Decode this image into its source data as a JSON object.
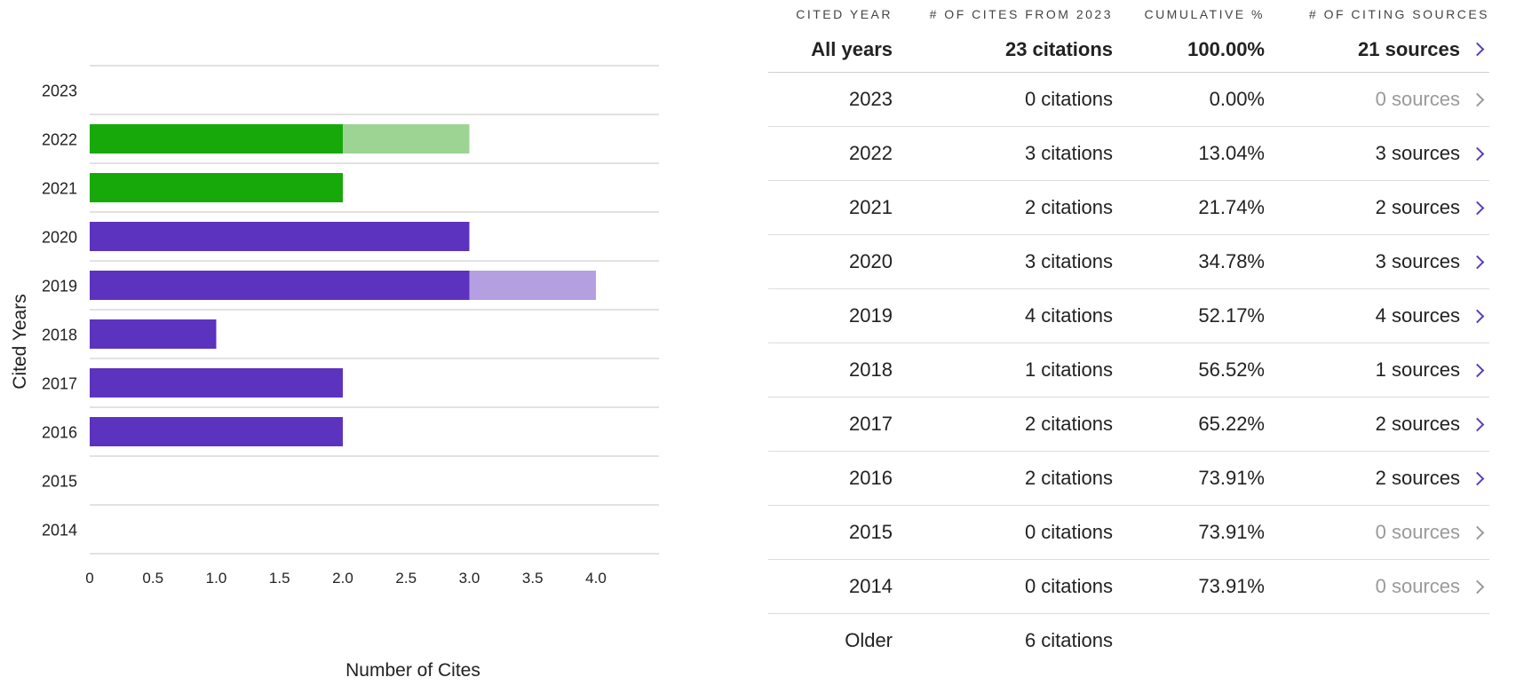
{
  "chart_data": {
    "type": "bar",
    "orientation": "horizontal",
    "stacked": true,
    "ylabel": "Cited Years",
    "xlabel": "Number of Cites",
    "xlim": [
      0,
      4.5
    ],
    "xticks": [
      "0",
      "0.5",
      "1.0",
      "1.5",
      "2.0",
      "2.5",
      "3.0",
      "3.5",
      "4.0"
    ],
    "xtick_values": [
      0,
      0.5,
      1,
      1.5,
      2,
      2.5,
      3,
      3.5,
      4
    ],
    "grid": "horizontal row dividers",
    "categories": [
      "2023",
      "2022",
      "2021",
      "2020",
      "2019",
      "2018",
      "2017",
      "2016",
      "2015",
      "2014"
    ],
    "series": [
      {
        "values": [
          0,
          2,
          2,
          3,
          3,
          1,
          2,
          2,
          0,
          0
        ],
        "colors": [
          "#5c33bf",
          "#17a80a",
          "#17a80a",
          "#5c33bf",
          "#5c33bf",
          "#5c33bf",
          "#5c33bf",
          "#5c33bf",
          "#5c33bf",
          "#5c33bf"
        ]
      },
      {
        "values": [
          0,
          1,
          0,
          0,
          1,
          0,
          0,
          0,
          0,
          0
        ],
        "colors": [
          "#b49fe1",
          "#9dd494",
          "#9dd494",
          "#b49fe1",
          "#b49fe1",
          "#b49fe1",
          "#b49fe1",
          "#b49fe1",
          "#b49fe1",
          "#b49fe1"
        ]
      }
    ]
  },
  "table": {
    "headers": {
      "year": "CITED YEAR",
      "cites": "# OF CITES FROM 2023",
      "cumulative": "CUMULATIVE %",
      "sources": "# OF CITING SOURCES"
    },
    "total": {
      "year": "All years",
      "cites": "23 citations",
      "cumulative": "100.00%",
      "sources": "21 sources"
    },
    "rows": [
      {
        "year": "2023",
        "cites": "0 citations",
        "cumulative": "0.00%",
        "sources": "0 sources"
      },
      {
        "year": "2022",
        "cites": "3 citations",
        "cumulative": "13.04%",
        "sources": "3 sources"
      },
      {
        "year": "2021",
        "cites": "2 citations",
        "cumulative": "21.74%",
        "sources": "2 sources"
      },
      {
        "year": "2020",
        "cites": "3 citations",
        "cumulative": "34.78%",
        "sources": "3 sources"
      },
      {
        "year": "2019",
        "cites": "4 citations",
        "cumulative": "52.17%",
        "sources": "4 sources"
      },
      {
        "year": "2018",
        "cites": "1 citations",
        "cumulative": "56.52%",
        "sources": "1 sources"
      },
      {
        "year": "2017",
        "cites": "2 citations",
        "cumulative": "65.22%",
        "sources": "2 sources"
      },
      {
        "year": "2016",
        "cites": "2 citations",
        "cumulative": "73.91%",
        "sources": "2 sources"
      },
      {
        "year": "2015",
        "cites": "0 citations",
        "cumulative": "73.91%",
        "sources": "0 sources"
      },
      {
        "year": "2014",
        "cites": "0 citations",
        "cumulative": "73.91%",
        "sources": "0 sources"
      }
    ],
    "older": {
      "year": "Older",
      "cites": "6 citations"
    }
  },
  "icons": {
    "source_link": "chevron-right-icon"
  },
  "colors": {
    "accent": "#5c33bf",
    "muted": "#9a9a9a"
  }
}
